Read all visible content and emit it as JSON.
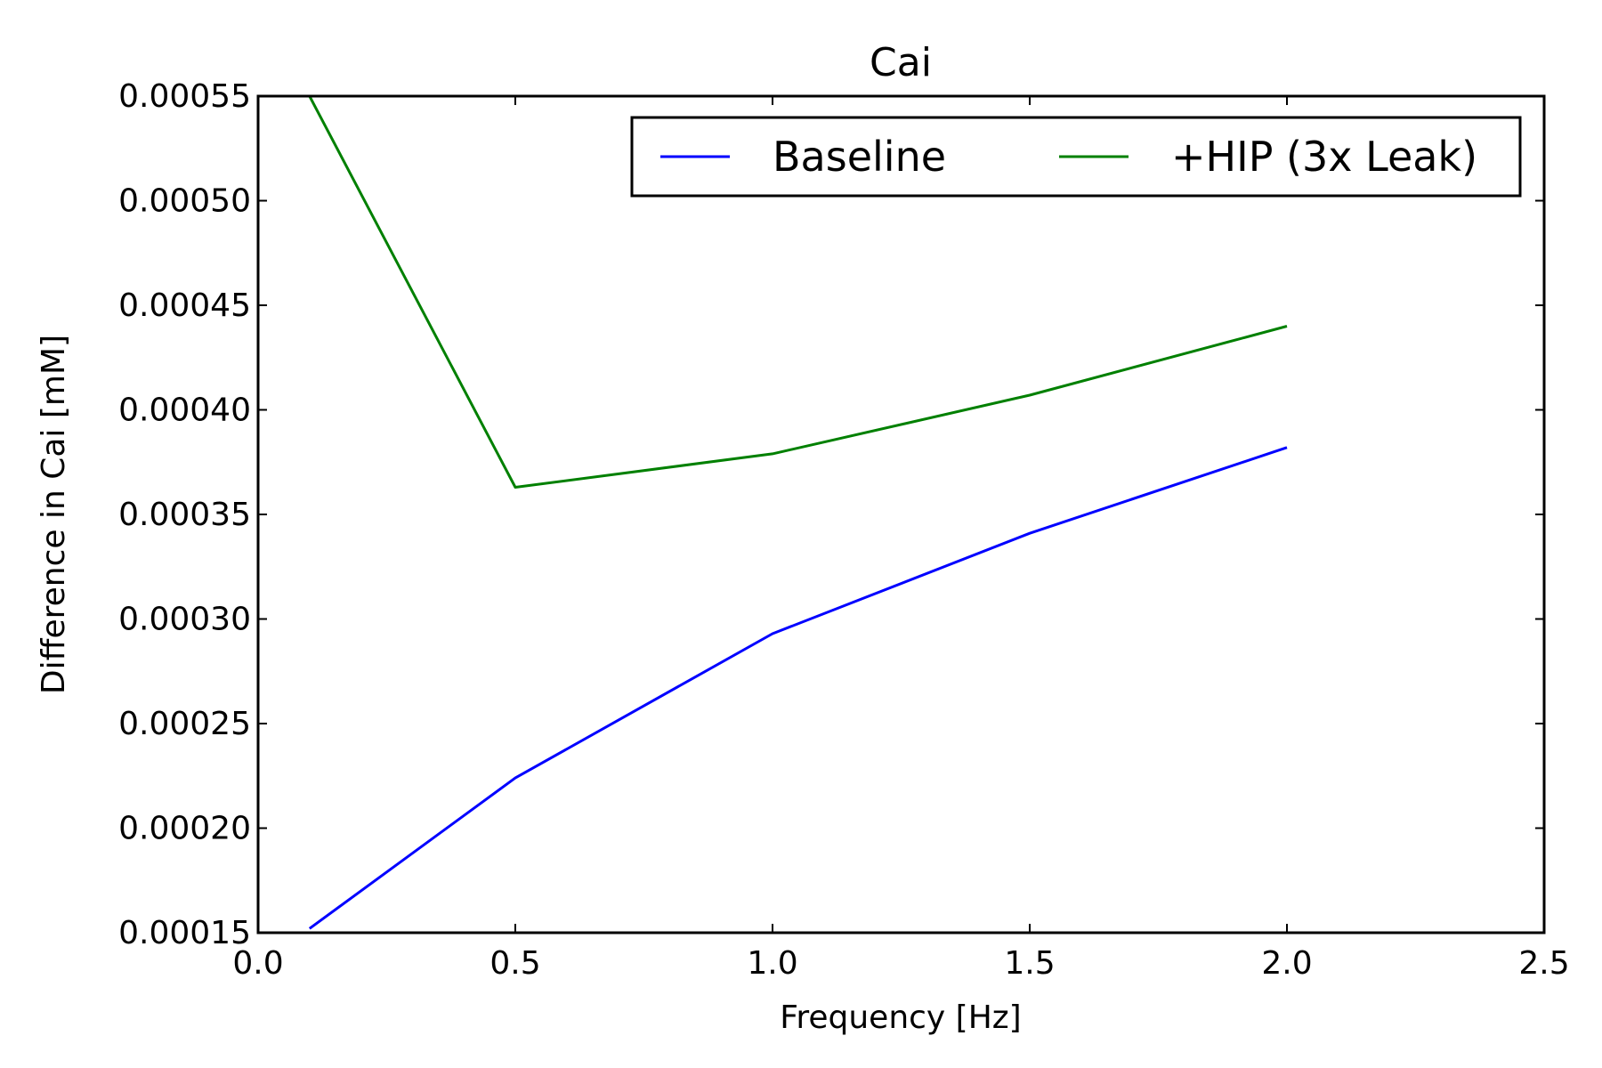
{
  "chart_data": {
    "type": "line",
    "title": "Cai",
    "xlabel": "Frequency [Hz]",
    "ylabel": "Difference in Cai [mM]",
    "xlim": [
      0.0,
      2.5
    ],
    "ylim": [
      0.00015,
      0.00055
    ],
    "xticks": [
      0.0,
      0.5,
      1.0,
      1.5,
      2.0,
      2.5
    ],
    "xtick_labels": [
      "0.0",
      "0.5",
      "1.0",
      "1.5",
      "2.0",
      "2.5"
    ],
    "yticks": [
      0.00015,
      0.0002,
      0.00025,
      0.0003,
      0.00035,
      0.0004,
      0.00045,
      0.0005,
      0.00055
    ],
    "ytick_labels": [
      "0.00015",
      "0.00020",
      "0.00025",
      "0.00030",
      "0.00035",
      "0.00040",
      "0.00045",
      "0.00050",
      "0.00055"
    ],
    "grid": false,
    "legend_position": "top-right",
    "legend_columns": 2,
    "series": [
      {
        "name": "Baseline",
        "color": "#0000ff",
        "x": [
          0.1,
          0.5,
          1.0,
          1.5,
          2.0
        ],
        "y": [
          0.000152,
          0.000224,
          0.000293,
          0.000341,
          0.000382
        ]
      },
      {
        "name": "+HIP (3x Leak)",
        "color": "#008000",
        "x": [
          0.1,
          0.5,
          1.0,
          1.5,
          2.0
        ],
        "y": [
          0.00055,
          0.000363,
          0.000379,
          0.000407,
          0.00044
        ]
      }
    ]
  }
}
